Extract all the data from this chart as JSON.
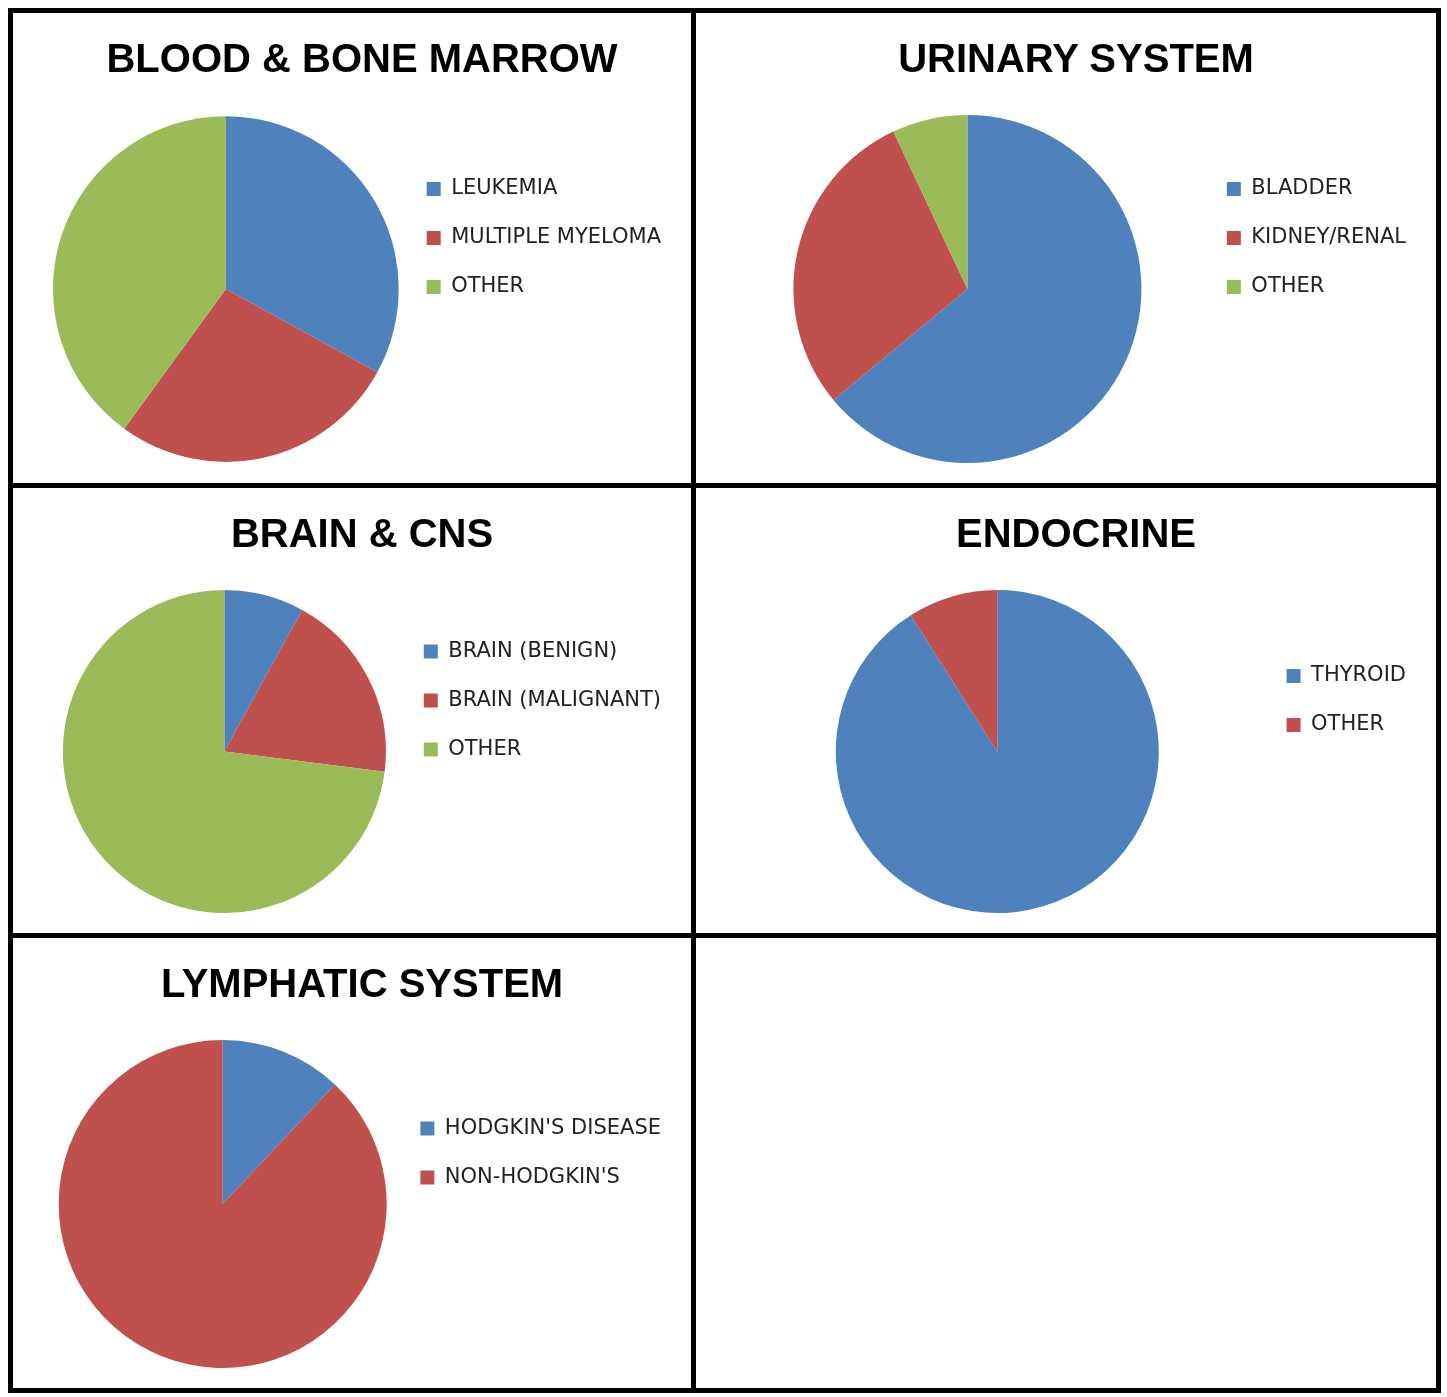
{
  "chart_data": [
    {
      "type": "pie",
      "title": "BLOOD & BONE MARROW",
      "categories": [
        "LEUKEMIA",
        "MULTIPLE MYELOMA",
        "OTHER"
      ],
      "values": [
        33,
        27,
        40
      ],
      "colors": [
        "#4f81bd",
        "#c0504d",
        "#9bbb59"
      ],
      "legend": "right"
    },
    {
      "type": "pie",
      "title": "URINARY SYSTEM",
      "categories": [
        "BLADDER",
        "KIDNEY/RENAL",
        "OTHER"
      ],
      "values": [
        64,
        29,
        7
      ],
      "colors": [
        "#4f81bd",
        "#c0504d",
        "#9bbb59"
      ],
      "legend": "right"
    },
    {
      "type": "pie",
      "title": "BRAIN & CNS",
      "categories": [
        "BRAIN (BENIGN)",
        "BRAIN (MALIGNANT)",
        "OTHER"
      ],
      "values": [
        8,
        19,
        73
      ],
      "colors": [
        "#4f81bd",
        "#c0504d",
        "#9bbb59"
      ],
      "legend": "right"
    },
    {
      "type": "pie",
      "title": "ENDOCRINE",
      "categories": [
        "THYROID",
        "OTHER"
      ],
      "values": [
        91,
        9
      ],
      "colors": [
        "#4f81bd",
        "#c0504d"
      ],
      "legend": "right"
    },
    {
      "type": "pie",
      "title": "LYMPHATIC SYSTEM",
      "categories": [
        "HODGKIN'S DISEASE",
        "NON-HODGKIN'S"
      ],
      "values": [
        12,
        88
      ],
      "colors": [
        "#4f81bd",
        "#c0504d"
      ],
      "legend": "right"
    }
  ]
}
